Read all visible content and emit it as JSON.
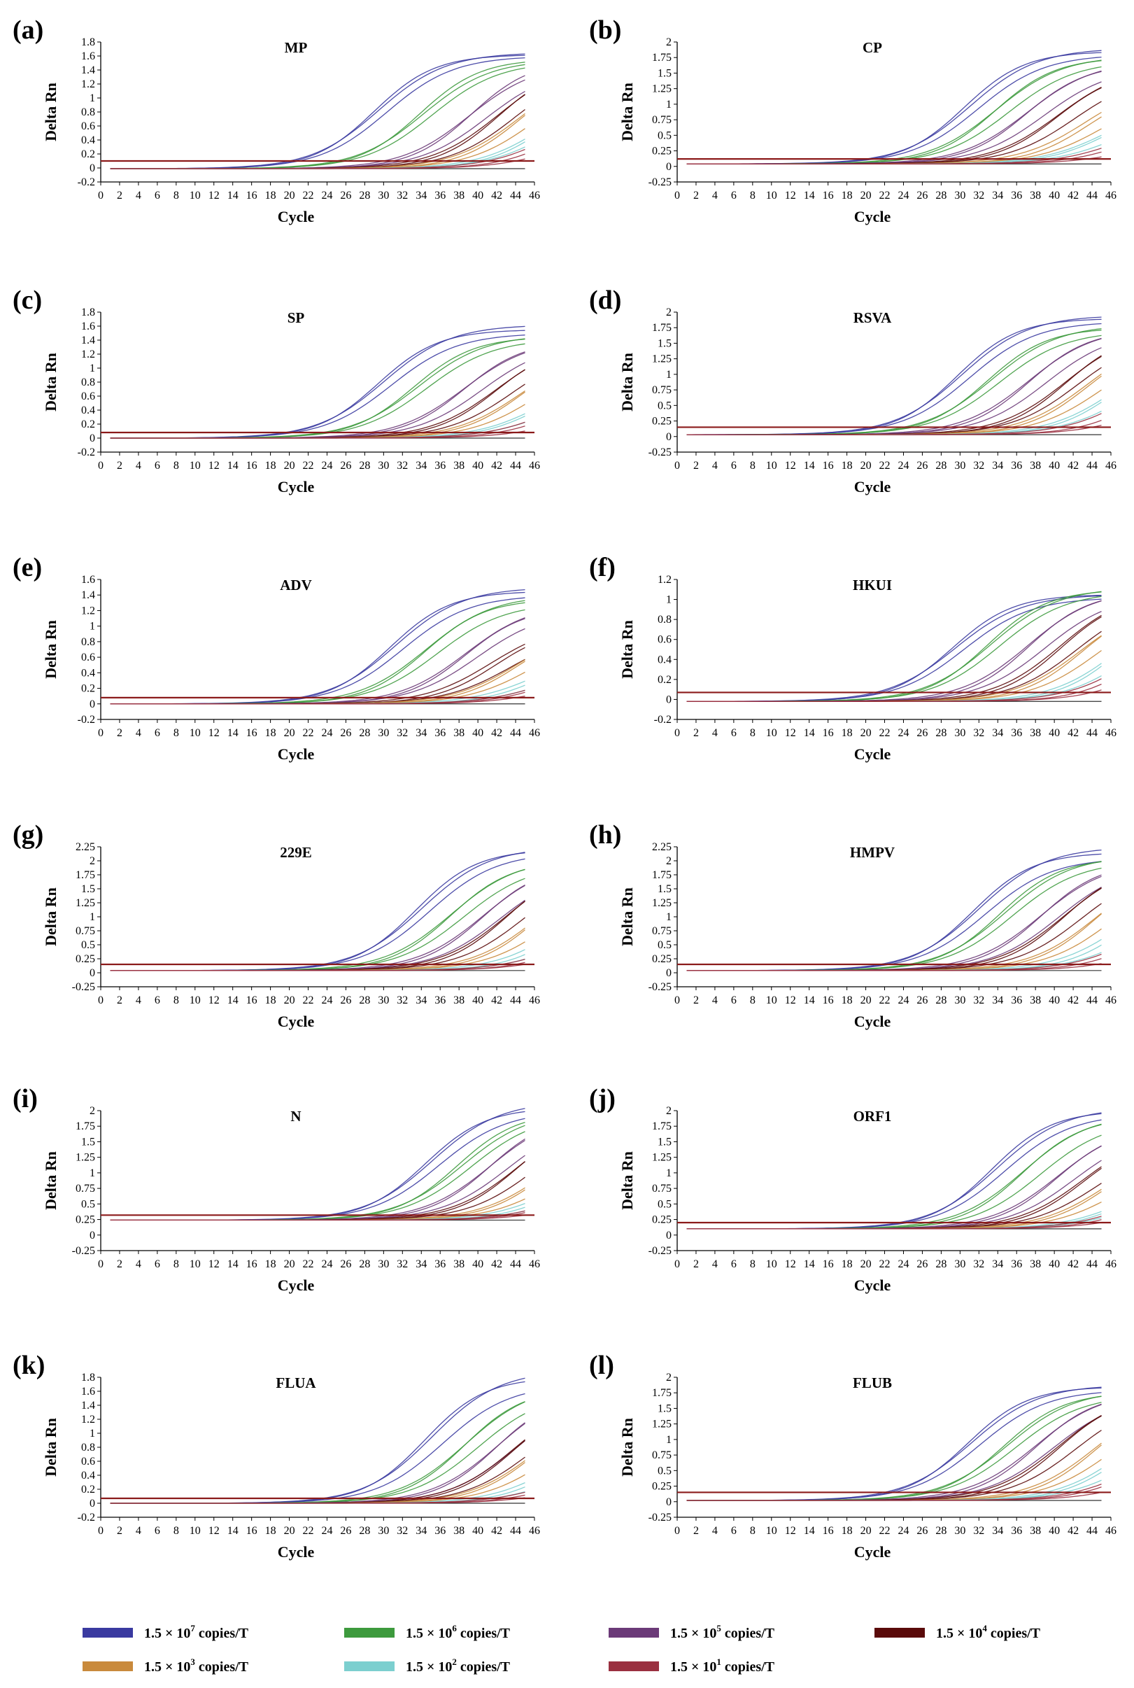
{
  "legend": [
    {
      "base": "1.5 × 10",
      "exp": "7",
      "unit": " copies/T",
      "color": "#3a3aa0"
    },
    {
      "base": "1.5 × 10",
      "exp": "6",
      "unit": " copies/T",
      "color": "#3d9a3d"
    },
    {
      "base": "1.5 × 10",
      "exp": "5",
      "unit": " copies/T",
      "color": "#6b3a78"
    },
    {
      "base": "1.5 × 10",
      "exp": "4",
      "unit": " copies/T",
      "color": "#5a0a0a"
    },
    {
      "base": "1.5 × 10",
      "exp": "3",
      "unit": " copies/T",
      "color": "#c98a3c"
    },
    {
      "base": "1.5 × 10",
      "exp": "2",
      "unit": " copies/T",
      "color": "#7ccfcf"
    },
    {
      "base": "1.5 × 10",
      "exp": "1",
      "unit": " copies/T",
      "color": "#9a3040"
    }
  ],
  "threshold_color": "#8b1a1a",
  "chart_data": [
    {
      "letter": "(a)",
      "title": "MP",
      "type": "line",
      "xlabel": "Cycle",
      "ylabel": "Delta Rn",
      "xlim": [
        0,
        46
      ],
      "ylim": [
        -0.2,
        1.8
      ],
      "yticks": [
        "-0.2",
        "0",
        "0.2",
        "0.4",
        "0.6",
        "0.8",
        "1",
        "1.2",
        "1.4",
        "1.6",
        "1.8"
      ],
      "threshold": 0.1,
      "baseline": -0.01,
      "series_ct": [
        [
          20.0,
          20.5,
          21.0
        ],
        [
          25.0,
          25.5,
          26.0
        ],
        [
          30.0,
          31.0,
          32.0
        ],
        [
          33.0,
          34.0,
          35.0
        ],
        [
          35.5,
          36.5,
          37.5
        ],
        [
          39.0,
          40.0,
          40.5
        ],
        [
          41.0,
          42.5,
          44.0
        ]
      ],
      "series_plateau": [
        [
          1.65,
          1.62,
          1.6
        ],
        [
          1.55,
          1.56,
          1.52
        ],
        [
          1.5,
          1.55,
          1.45
        ],
        [
          1.52,
          1.5,
          1.48
        ],
        [
          1.45,
          1.4,
          1.38
        ],
        [
          1.2,
          1.15,
          1.1
        ],
        [
          1.0,
          0.9,
          0.7
        ]
      ]
    },
    {
      "letter": "(b)",
      "title": "CP",
      "type": "line",
      "xlabel": "Cycle",
      "ylabel": "Delta Rn",
      "xlim": [
        0,
        46
      ],
      "ylim": [
        -0.25,
        2.0
      ],
      "yticks": [
        "-0.25",
        "0",
        "0.25",
        "0.5",
        "0.75",
        "1",
        "1.25",
        "1.5",
        "1.75",
        "2"
      ],
      "threshold": 0.12,
      "baseline": 0.04,
      "series_ct": [
        [
          20.0,
          20.5,
          21.0
        ],
        [
          23.0,
          24.0,
          24.5
        ],
        [
          26.5,
          27.5,
          28.5
        ],
        [
          30.0,
          31.0,
          32.0
        ],
        [
          33.5,
          35.0,
          36.0
        ],
        [
          37.0,
          38.0,
          39.0
        ],
        [
          40.0,
          41.5,
          43.5
        ]
      ],
      "series_plateau": [
        [
          1.9,
          1.85,
          1.8
        ],
        [
          1.78,
          1.75,
          1.7
        ],
        [
          1.7,
          1.65,
          1.6
        ],
        [
          1.62,
          1.55,
          1.5
        ],
        [
          1.4,
          1.3,
          1.25
        ],
        [
          1.1,
          1.0,
          0.95
        ],
        [
          0.9,
          0.7,
          0.55
        ]
      ]
    },
    {
      "letter": "(c)",
      "title": "SP",
      "type": "line",
      "xlabel": "Cycle",
      "ylabel": "Delta Rn",
      "xlim": [
        0,
        46
      ],
      "ylim": [
        -0.2,
        1.8
      ],
      "yticks": [
        "-0.2",
        "0",
        "0.2",
        "0.4",
        "0.6",
        "0.8",
        "1",
        "1.2",
        "1.4",
        "1.6",
        "1.8"
      ],
      "threshold": 0.08,
      "baseline": 0.0,
      "series_ct": [
        [
          19.5,
          20.0,
          20.5
        ],
        [
          23.5,
          24.0,
          24.5
        ],
        [
          28.5,
          29.5,
          30.5
        ],
        [
          32.0,
          33.0,
          34.0
        ],
        [
          35.0,
          36.0,
          37.0
        ],
        [
          38.5,
          39.5,
          40.5
        ],
        [
          40.5,
          42.0,
          44.0
        ]
      ],
      "series_plateau": [
        [
          1.62,
          1.55,
          1.5
        ],
        [
          1.48,
          1.45,
          1.42
        ],
        [
          1.42,
          1.4,
          1.38
        ],
        [
          1.4,
          1.36,
          1.32
        ],
        [
          1.3,
          1.25,
          1.2
        ],
        [
          1.0,
          0.9,
          0.8
        ],
        [
          0.85,
          0.7,
          0.6
        ]
      ]
    },
    {
      "letter": "(d)",
      "title": "RSVA",
      "type": "line",
      "xlabel": "Cycle",
      "ylabel": "Delta Rn",
      "xlim": [
        0,
        46
      ],
      "ylim": [
        -0.25,
        2.0
      ],
      "yticks": [
        "-0.25",
        "0",
        "0.25",
        "0.5",
        "0.75",
        "1",
        "1.25",
        "1.5",
        "1.75",
        "2"
      ],
      "threshold": 0.15,
      "baseline": 0.03,
      "series_ct": [
        [
          20.5,
          21.0,
          21.5
        ],
        [
          24.0,
          24.5,
          25.0
        ],
        [
          28.0,
          29.0,
          30.0
        ],
        [
          32.0,
          33.0,
          33.5
        ],
        [
          34.5,
          35.5,
          36.5
        ],
        [
          38.0,
          39.0,
          40.0
        ],
        [
          40.5,
          42.5,
          44.0
        ]
      ],
      "series_plateau": [
        [
          1.95,
          1.9,
          1.85
        ],
        [
          1.8,
          1.75,
          1.7
        ],
        [
          1.75,
          1.72,
          1.7
        ],
        [
          1.72,
          1.7,
          1.65
        ],
        [
          1.65,
          1.55,
          1.5
        ],
        [
          1.45,
          1.4,
          1.3
        ],
        [
          1.3,
          1.1,
          0.9
        ]
      ]
    },
    {
      "letter": "(e)",
      "title": "ADV",
      "type": "line",
      "xlabel": "Cycle",
      "ylabel": "Delta Rn",
      "xlim": [
        0,
        46
      ],
      "ylim": [
        -0.2,
        1.6
      ],
      "yticks": [
        "-0.2",
        "0",
        "0.2",
        "0.4",
        "0.6",
        "0.8",
        "1",
        "1.2",
        "1.4",
        "1.6"
      ],
      "threshold": 0.08,
      "baseline": 0.0,
      "series_ct": [
        [
          21.0,
          21.5,
          22.0
        ],
        [
          24.5,
          25.5,
          26.0
        ],
        [
          29.0,
          30.0,
          30.5
        ],
        [
          32.5,
          34.0,
          35.0
        ],
        [
          35.5,
          36.5,
          37.5
        ],
        [
          39.0,
          40.5,
          41.5
        ],
        [
          41.5,
          42.5,
          44.0
        ]
      ],
      "series_plateau": [
        [
          1.5,
          1.45,
          1.4
        ],
        [
          1.4,
          1.35,
          1.3
        ],
        [
          1.3,
          1.25,
          1.2
        ],
        [
          1.05,
          1.0,
          0.95
        ],
        [
          1.05,
          1.0,
          0.95
        ],
        [
          0.75,
          0.7,
          0.65
        ],
        [
          0.6,
          0.55,
          0.5
        ]
      ]
    },
    {
      "letter": "(f)",
      "title": "HKUI",
      "type": "line",
      "xlabel": "Cycle",
      "ylabel": "Delta Rn",
      "xlim": [
        0,
        46
      ],
      "ylim": [
        -0.2,
        1.2
      ],
      "yticks": [
        "-0.2",
        "0",
        "0.2",
        "0.4",
        "0.6",
        "0.8",
        "1",
        "1.2"
      ],
      "threshold": 0.07,
      "baseline": -0.02,
      "series_ct": [
        [
          21.0,
          21.5,
          22.0
        ],
        [
          24.5,
          25.0,
          25.5
        ],
        [
          28.5,
          29.5,
          30.5
        ],
        [
          32.0,
          33.0,
          34.0
        ],
        [
          34.5,
          35.5,
          36.5
        ],
        [
          38.5,
          39.5,
          40.5
        ],
        [
          41.0,
          42.5,
          44.0
        ]
      ],
      "series_plateau": [
        [
          1.05,
          1.05,
          1.02
        ],
        [
          1.12,
          1.1,
          1.08
        ],
        [
          1.1,
          1.08,
          1.05
        ],
        [
          1.1,
          1.05,
          1.02
        ],
        [
          1.0,
          0.98,
          0.95
        ],
        [
          1.0,
          0.98,
          0.95
        ],
        [
          0.85,
          0.8,
          0.78
        ]
      ]
    },
    {
      "letter": "(g)",
      "title": "229E",
      "type": "line",
      "xlabel": "Cycle",
      "ylabel": "Delta Rn",
      "xlim": [
        0,
        46
      ],
      "ylim": [
        -0.25,
        2.25
      ],
      "yticks": [
        "-0.25",
        "0",
        "0.25",
        "0.5",
        "0.75",
        "1",
        "1.25",
        "1.5",
        "1.75",
        "2",
        "2.25"
      ],
      "threshold": 0.15,
      "baseline": 0.04,
      "series_ct": [
        [
          23.5,
          24.0,
          24.5
        ],
        [
          27.0,
          28.0,
          28.5
        ],
        [
          30.5,
          31.5,
          32.5
        ],
        [
          33.0,
          34.0,
          35.0
        ],
        [
          36.5,
          37.5,
          38.5
        ],
        [
          40.0,
          41.5,
          42.5
        ],
        [
          42.5,
          44.0,
          45.0
        ]
      ],
      "series_plateau": [
        [
          2.25,
          2.2,
          2.15
        ],
        [
          2.05,
          2.0,
          1.95
        ],
        [
          2.0,
          1.95,
          1.9
        ],
        [
          2.0,
          1.95,
          1.9
        ],
        [
          1.95,
          1.9,
          1.8
        ],
        [
          1.8,
          1.6,
          1.4
        ],
        [
          1.1,
          0.9,
          0.8
        ]
      ]
    },
    {
      "letter": "(h)",
      "title": "HMPV",
      "type": "line",
      "xlabel": "Cycle",
      "ylabel": "Delta Rn",
      "xlim": [
        0,
        46
      ],
      "ylim": [
        -0.25,
        2.25
      ],
      "yticks": [
        "-0.25",
        "0",
        "0.25",
        "0.5",
        "0.75",
        "1",
        "1.25",
        "1.5",
        "1.75",
        "2",
        "2.25"
      ],
      "threshold": 0.15,
      "baseline": 0.04,
      "series_ct": [
        [
          21.5,
          22.0,
          22.5
        ],
        [
          24.5,
          25.0,
          25.5
        ],
        [
          28.5,
          29.5,
          30.5
        ],
        [
          31.0,
          32.0,
          33.0
        ],
        [
          34.5,
          35.5,
          36.5
        ],
        [
          38.0,
          39.5,
          40.5
        ],
        [
          41.0,
          42.5,
          44.5
        ]
      ],
      "series_plateau": [
        [
          2.25,
          2.15,
          2.05
        ],
        [
          2.1,
          2.05,
          2.0
        ],
        [
          2.0,
          1.98,
          1.95
        ],
        [
          2.0,
          1.95,
          1.9
        ],
        [
          1.95,
          1.9,
          1.85
        ],
        [
          1.7,
          1.55,
          1.4
        ],
        [
          1.5,
          1.1,
          0.9
        ]
      ]
    },
    {
      "letter": "(i)",
      "title": "N",
      "type": "line",
      "xlabel": "Cycle",
      "ylabel": "Delta Rn",
      "xlim": [
        0,
        46
      ],
      "ylim": [
        -0.25,
        2.0
      ],
      "yticks": [
        "-0.25",
        "0",
        "0.25",
        "0.5",
        "0.75",
        "1",
        "1.25",
        "1.5",
        "1.75",
        "2"
      ],
      "threshold": 0.32,
      "baseline": 0.24,
      "series_ct": [
        [
          24.0,
          24.5,
          25.0
        ],
        [
          27.5,
          28.0,
          28.5
        ],
        [
          30.5,
          31.5,
          32.5
        ],
        [
          33.5,
          34.5,
          35.5
        ],
        [
          37.0,
          38.0,
          39.0
        ],
        [
          40.0,
          41.5,
          42.5
        ],
        [
          42.5,
          43.5,
          45.0
        ]
      ],
      "series_plateau": [
        [
          2.15,
          2.05,
          2.0
        ],
        [
          2.0,
          1.98,
          1.95
        ],
        [
          1.98,
          1.95,
          1.9
        ],
        [
          1.95,
          1.9,
          1.85
        ],
        [
          1.75,
          1.65,
          1.6
        ],
        [
          1.4,
          1.3,
          1.2
        ],
        [
          1.2,
          1.0,
          0.9
        ]
      ]
    },
    {
      "letter": "(j)",
      "title": "ORF1",
      "type": "line",
      "xlabel": "Cycle",
      "ylabel": "Delta Rn",
      "xlim": [
        0,
        46
      ],
      "ylim": [
        -0.25,
        2.0
      ],
      "yticks": [
        "-0.25",
        "0",
        "0.25",
        "0.5",
        "0.75",
        "1",
        "1.25",
        "1.5",
        "1.75",
        "2"
      ],
      "threshold": 0.2,
      "baseline": 0.1,
      "series_ct": [
        [
          23.5,
          24.0,
          24.5
        ],
        [
          26.5,
          27.5,
          28.5
        ],
        [
          30.5,
          31.5,
          32.5
        ],
        [
          33.5,
          34.5,
          35.5
        ],
        [
          36.5,
          37.5,
          38.5
        ],
        [
          40.5,
          41.5,
          42.5
        ],
        [
          42.0,
          43.5,
          45.0
        ]
      ],
      "series_plateau": [
        [
          2.05,
          2.0,
          1.95
        ],
        [
          1.95,
          1.9,
          1.85
        ],
        [
          1.8,
          1.75,
          1.7
        ],
        [
          1.7,
          1.6,
          1.5
        ],
        [
          1.5,
          1.4,
          1.3
        ],
        [
          1.05,
          0.95,
          0.85
        ],
        [
          1.0,
          0.8,
          0.7
        ]
      ]
    },
    {
      "letter": "(k)",
      "title": "FLUA",
      "type": "line",
      "xlabel": "Cycle",
      "ylabel": "Delta Rn",
      "xlim": [
        0,
        46
      ],
      "ylim": [
        -0.2,
        1.8
      ],
      "yticks": [
        "-0.2",
        "0",
        "0.2",
        "0.4",
        "0.6",
        "0.8",
        "1",
        "1.2",
        "1.4",
        "1.6",
        "1.8"
      ],
      "threshold": 0.07,
      "baseline": 0.0,
      "series_ct": [
        [
          23.5,
          24.0,
          25.0
        ],
        [
          27.5,
          28.5,
          29.0
        ],
        [
          31.0,
          32.0,
          33.0
        ],
        [
          33.0,
          34.0,
          35.0
        ],
        [
          35.5,
          36.5,
          37.5
        ],
        [
          39.0,
          40.5,
          41.5
        ],
        [
          41.5,
          43.0,
          44.5
        ]
      ],
      "series_plateau": [
        [
          1.9,
          1.8,
          1.7
        ],
        [
          1.7,
          1.65,
          1.6
        ],
        [
          1.65,
          1.6,
          1.55
        ],
        [
          1.6,
          1.5,
          1.45
        ],
        [
          1.45,
          1.35,
          1.25
        ],
        [
          1.1,
          1.0,
          0.9
        ],
        [
          0.6,
          0.5,
          0.45
        ]
      ]
    },
    {
      "letter": "(l)",
      "title": "FLUB",
      "type": "line",
      "xlabel": "Cycle",
      "ylabel": "Delta Rn",
      "xlim": [
        0,
        46
      ],
      "ylim": [
        -0.25,
        2.0
      ],
      "yticks": [
        "-0.25",
        "0",
        "0.25",
        "0.5",
        "0.75",
        "1",
        "1.25",
        "1.5",
        "1.75",
        "2"
      ],
      "threshold": 0.15,
      "baseline": 0.02,
      "series_ct": [
        [
          22.0,
          22.5,
          23.0
        ],
        [
          26.0,
          26.5,
          27.0
        ],
        [
          29.0,
          30.0,
          31.0
        ],
        [
          31.5,
          32.5,
          33.5
        ],
        [
          35.5,
          36.5,
          37.5
        ],
        [
          39.0,
          40.0,
          41.0
        ],
        [
          42.0,
          43.0,
          45.0
        ]
      ],
      "series_plateau": [
        [
          1.88,
          1.85,
          1.8
        ],
        [
          1.8,
          1.76,
          1.72
        ],
        [
          1.78,
          1.75,
          1.7
        ],
        [
          1.78,
          1.72,
          1.68
        ],
        [
          1.72,
          1.65,
          1.55
        ],
        [
          1.6,
          1.4,
          1.2
        ],
        [
          1.2,
          0.95,
          0.8
        ]
      ]
    }
  ]
}
